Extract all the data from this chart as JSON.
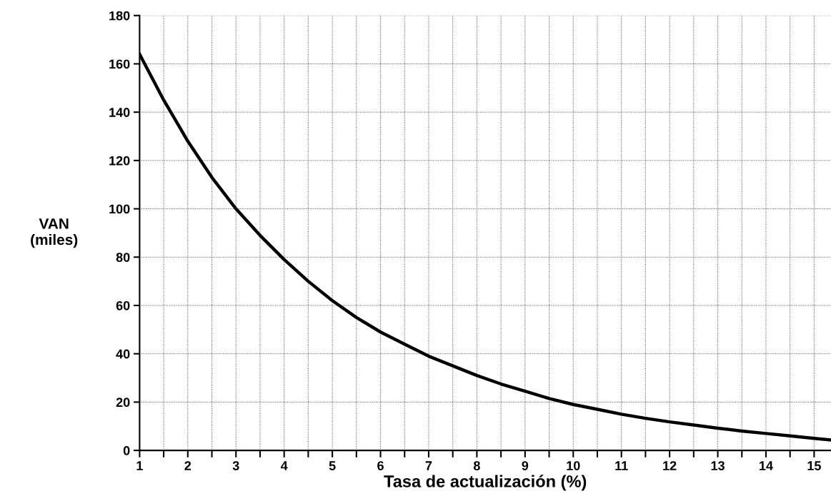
{
  "chart_data": {
    "type": "line",
    "xlabel": "Tasa de actualización (%)",
    "ylabel": "VAN\n(miles)",
    "x": [
      1,
      1.5,
      2,
      2.5,
      3,
      3.5,
      4,
      4.5,
      5,
      5.5,
      6,
      6.5,
      7,
      7.5,
      8,
      8.5,
      9,
      9.5,
      10,
      10.5,
      11,
      11.5,
      12,
      12.5,
      13,
      13.5,
      14,
      14.5,
      15,
      15.35
    ],
    "series": [
      {
        "color": "#000000",
        "values": [
          164,
          145,
          128,
          113,
          100,
          89,
          79,
          70,
          62,
          55,
          49,
          44,
          39,
          35,
          31,
          27.5,
          24.5,
          21.5,
          19,
          17,
          15,
          13.3,
          11.8,
          10.5,
          9.2,
          8,
          7,
          6,
          5,
          4.3
        ]
      }
    ],
    "xlim": [
      1,
      15.35
    ],
    "xticks": [
      1,
      {
        "value": 1.5,
        "label": null
      },
      2,
      {
        "value": 2.5,
        "label": null
      },
      3,
      {
        "value": 3.5,
        "label": null
      },
      4,
      {
        "value": 4.5,
        "label": null
      },
      5,
      {
        "value": 5.5,
        "label": null
      },
      6,
      {
        "value": 6.5,
        "label": null
      },
      7,
      {
        "value": 7.5,
        "label": null
      },
      8,
      {
        "value": 8.5,
        "label": null
      },
      9,
      {
        "value": 9.5,
        "label": null
      },
      10,
      {
        "value": 10.5,
        "label": null
      },
      11,
      {
        "value": 11.5,
        "label": null
      },
      12,
      {
        "value": 12.5,
        "label": null
      },
      13,
      {
        "value": 13.5,
        "label": null
      },
      14,
      {
        "value": 14.5,
        "label": null
      },
      15
    ],
    "ylim": [
      0,
      180
    ],
    "yticks": [
      0,
      20,
      40,
      60,
      80,
      100,
      120,
      140,
      160,
      180
    ],
    "grid": true,
    "legend": false,
    "marker": "none",
    "line_style": "solid"
  }
}
